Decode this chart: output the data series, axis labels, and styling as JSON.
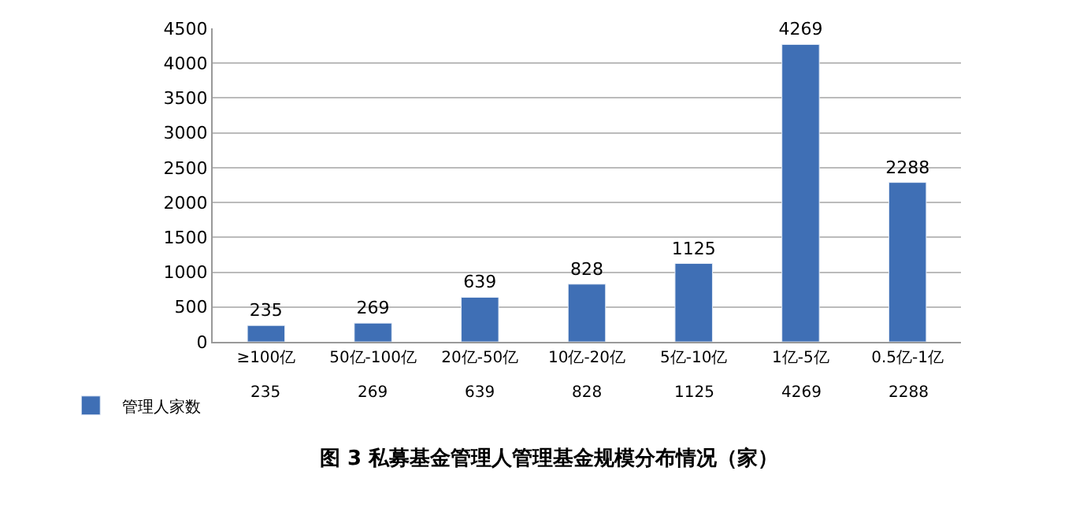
{
  "chart_data": {
    "type": "bar",
    "title": "图 3 私募基金管理人管理基金规模分布情况（家）",
    "categories": [
      "≥100亿",
      "50亿-100亿",
      "20亿-50亿",
      "10亿-20亿",
      "5亿-10亿",
      "1亿-5亿",
      "0.5亿-1亿"
    ],
    "series": [
      {
        "name": "管理人家数",
        "color": "#3f6fb5",
        "values": [
          235,
          269,
          639,
          828,
          1125,
          4269,
          2288
        ]
      }
    ],
    "ylim": [
      0,
      4500
    ],
    "yticks": [
      0,
      500,
      1000,
      1500,
      2000,
      2500,
      3000,
      3500,
      4000,
      4500
    ],
    "grid": "y",
    "legend": "bottom left",
    "data_labels": true,
    "annotations": [
      "235",
      "269",
      "639",
      "828",
      "1125",
      "4269",
      "2288"
    ]
  }
}
